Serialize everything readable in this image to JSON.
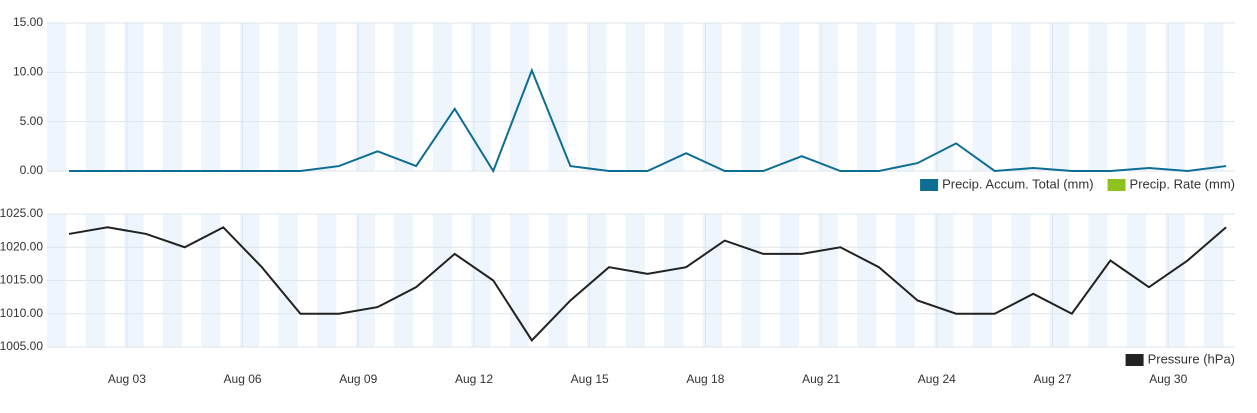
{
  "chart_data": [
    {
      "type": "line",
      "series": [
        {
          "name": "Precip. Accum. Total (mm)",
          "color": "#0d6d94",
          "values": [
            0,
            0,
            0,
            0,
            0,
            0,
            0,
            0.5,
            2.0,
            0.5,
            6.3,
            0,
            10.2,
            0.5,
            0,
            0,
            1.8,
            0,
            0,
            1.5,
            0,
            0,
            0.8,
            2.8,
            0,
            0.3,
            0,
            0,
            0.3,
            0,
            0.5
          ]
        },
        {
          "name": "Precip. Rate (mm)",
          "color": "#8dc21f"
        }
      ],
      "ylim": [
        0,
        15
      ],
      "yticks": [
        {
          "value": 0,
          "label": "0.00"
        },
        {
          "value": 5,
          "label": "5.00"
        },
        {
          "value": 10,
          "label": "10.00"
        },
        {
          "value": 15,
          "label": "15.00"
        }
      ],
      "grid": true,
      "legend": "bottom-right"
    },
    {
      "type": "line",
      "categories": [
        null,
        null,
        "Aug 03",
        null,
        null,
        "Aug 06",
        null,
        null,
        "Aug 09",
        null,
        null,
        "Aug 12",
        null,
        null,
        "Aug 15",
        null,
        null,
        "Aug 18",
        null,
        null,
        "Aug 21",
        null,
        null,
        "Aug 24",
        null,
        null,
        "Aug 27",
        null,
        null,
        "Aug 30",
        null
      ],
      "series": [
        {
          "name": "Pressure (hPa)",
          "color": "#222222",
          "values": [
            1022,
            1023,
            1022,
            1020,
            1023,
            1017,
            1010,
            1010,
            1011,
            1014,
            1019,
            1015,
            1006,
            1012,
            1017,
            1016,
            1017,
            1021,
            1019,
            1019,
            1020,
            1017,
            1012,
            1010,
            1010,
            1013,
            1010,
            1018,
            1014,
            1018,
            1023
          ]
        }
      ],
      "ylim": [
        1005,
        1025
      ],
      "yticks": [
        {
          "value": 1005,
          "label": "1005.00"
        },
        {
          "value": 1010,
          "label": "1010.00"
        },
        {
          "value": 1015,
          "label": "1015.00"
        },
        {
          "value": 1020,
          "label": "1020.00"
        },
        {
          "value": 1025,
          "label": "1025.00"
        }
      ],
      "grid": true,
      "legend": "bottom-right"
    }
  ]
}
